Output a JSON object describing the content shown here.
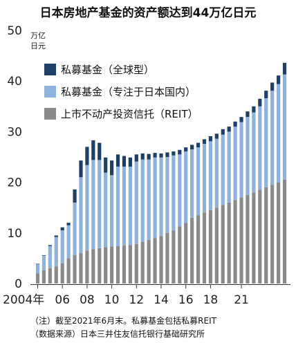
{
  "chart_data": {
    "type": "bar",
    "stacked": true,
    "title": "日本房地产基金的资产额达到44万亿日元",
    "unit_line1": "万亿",
    "unit_line2": "日元",
    "ylim": [
      0,
      50
    ],
    "yticks": [
      0,
      10,
      20,
      30,
      40,
      50
    ],
    "grid": false,
    "legend_position": "top-left",
    "x_tick_labels": [
      {
        "index": 0,
        "label": "2004年"
      },
      {
        "index": 8,
        "label": "06"
      },
      {
        "index": 16,
        "label": "08"
      },
      {
        "index": 24,
        "label": "10"
      },
      {
        "index": 32,
        "label": "12"
      },
      {
        "index": 40,
        "label": "14"
      },
      {
        "index": 48,
        "label": "16"
      },
      {
        "index": 56,
        "label": "18"
      },
      {
        "index": 66,
        "label": "21"
      }
    ],
    "series": [
      {
        "name": "上市不动产投资信托（REIT）",
        "color": "#8a8a8a",
        "values": [
          2.0,
          2.6,
          3.0,
          3.4,
          4.0,
          5.0,
          5.6,
          6.0,
          6.5,
          6.8,
          7.0,
          7.2,
          7.3,
          7.4,
          7.5,
          7.6,
          7.8,
          8.2,
          8.6,
          9.0,
          9.4,
          10.0,
          10.5,
          11.3,
          12.0,
          13.0,
          13.5,
          14.0,
          14.5,
          15.0,
          15.5,
          16.0,
          16.5,
          17.0,
          17.5,
          18.0,
          18.5,
          19.0,
          19.5,
          20.0,
          20.5
        ]
      },
      {
        "name": "私募基金（专注于日本国内）",
        "color": "#8fb3de",
        "values": [
          1.8,
          2.9,
          4.4,
          5.8,
          6.5,
          6.5,
          10.4,
          15.0,
          16.9,
          17.6,
          17.4,
          14.7,
          14.1,
          15.7,
          15.6,
          15.5,
          16.3,
          16.3,
          15.9,
          15.9,
          15.5,
          15.0,
          14.8,
          14.2,
          14.1,
          13.5,
          13.4,
          13.6,
          13.6,
          13.6,
          13.9,
          14.0,
          14.5,
          14.9,
          15.4,
          15.8,
          16.5,
          17.6,
          18.6,
          19.4,
          20.8
        ]
      },
      {
        "name": "私募基金（全球型）",
        "color": "#1e3f66",
        "values": [
          0.1,
          0.1,
          0.2,
          0.3,
          0.6,
          0.5,
          2.6,
          3.3,
          3.6,
          3.9,
          3.4,
          3.0,
          2.9,
          2.4,
          2.1,
          1.8,
          1.4,
          1.2,
          1.1,
          0.9,
          0.8,
          0.9,
          0.8,
          0.9,
          0.8,
          0.9,
          0.9,
          0.9,
          1.0,
          1.0,
          1.1,
          1.0,
          1.0,
          1.0,
          1.1,
          1.2,
          1.5,
          1.5,
          1.6,
          1.7,
          2.3
        ]
      }
    ],
    "legend": [
      {
        "label": "私募基金（全球型）",
        "color": "#1e3f66"
      },
      {
        "label": "私募基金（专注于日本国内）",
        "color": "#8fb3de"
      },
      {
        "label": "上市不动产投资信托（REIT）",
        "color": "#8a8a8a"
      }
    ]
  },
  "notes": {
    "note1": "（注）截至2021年6月末。私募基金包括私募REIT",
    "note2": "（数据来源）日本三井住友信托银行基础研究所"
  }
}
